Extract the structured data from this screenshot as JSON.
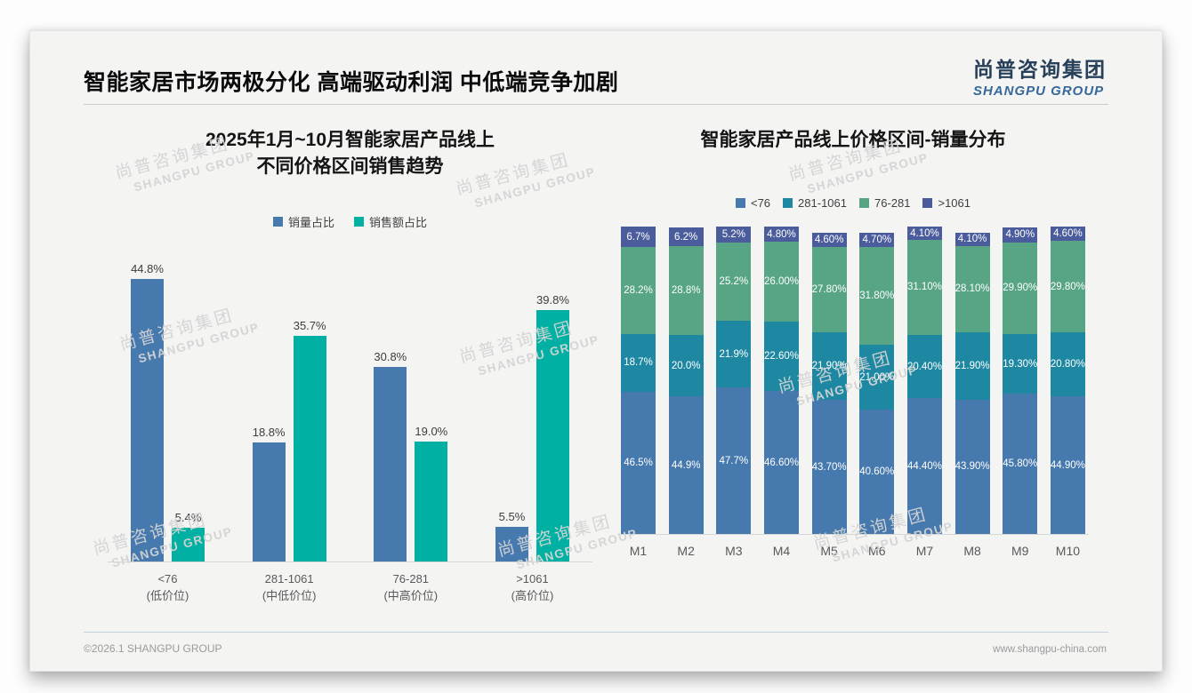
{
  "header": {
    "title": "智能家居市场两极分化 高端驱动利润 中低端竞争加剧",
    "logo_cn": "尚普咨询集团",
    "logo_en": "SHANGPU GROUP"
  },
  "footer": {
    "copyright": "©2026.1 SHANGPU GROUP",
    "website": "www.shangpu-china.com"
  },
  "watermark": {
    "line1": "尚普咨询集团",
    "line2": "SHANGPU GROUP"
  },
  "colors": {
    "steel_blue": "#4679ad",
    "teal": "#00b0a2",
    "dark_teal": "#1e88a2",
    "green": "#57a584",
    "navy": "#4a5c9c",
    "axis": "#d6d6d6"
  },
  "chart_data": [
    {
      "type": "bar",
      "title": "2025年1月~10月智能家居产品线上不同价格区间销售趋势",
      "title_lines": [
        "2025年1月~10月智能家居产品线上",
        "不同价格区间销售趋势"
      ],
      "xlabel": "",
      "ylabel": "",
      "ylim": [
        0,
        50
      ],
      "grid": false,
      "legend_position": "top",
      "value_labels": true,
      "categories": [
        {
          "range": "<76",
          "tier": "(低价位)"
        },
        {
          "range": "281-1061",
          "tier": "(中低价位)"
        },
        {
          "range": "76-281",
          "tier": "(中高价位)"
        },
        {
          "range": ">1061",
          "tier": "(高价位)"
        }
      ],
      "series": [
        {
          "name": "销量占比",
          "color": "#4679ad",
          "values": [
            44.8,
            18.8,
            30.8,
            5.5
          ],
          "labels": [
            "44.8%",
            "18.8%",
            "30.8%",
            "5.5%"
          ]
        },
        {
          "name": "销售额占比",
          "color": "#00b0a2",
          "values": [
            5.4,
            35.7,
            19.0,
            39.8
          ],
          "labels": [
            "5.4%",
            "35.7%",
            "19.0%",
            "39.8%"
          ]
        }
      ]
    },
    {
      "type": "bar",
      "stacked": true,
      "title": "智能家居产品线上价格区间-销量分布",
      "xlabel": "",
      "ylabel": "",
      "ylim": [
        0,
        100
      ],
      "grid": false,
      "legend_position": "top",
      "value_labels": true,
      "categories": [
        "M1",
        "M2",
        "M3",
        "M4",
        "M5",
        "M6",
        "M7",
        "M8",
        "M9",
        "M10"
      ],
      "series": [
        {
          "name": "<76",
          "color": "#4679ad",
          "values": [
            46.5,
            44.9,
            47.7,
            46.6,
            43.7,
            40.6,
            44.4,
            43.9,
            45.8,
            44.9
          ],
          "labels": [
            "46.5%",
            "44.9%",
            "47.7%",
            "46.60%",
            "43.70%",
            "40.60%",
            "44.40%",
            "43.90%",
            "45.80%",
            "44.90%"
          ]
        },
        {
          "name": "281-1061",
          "color": "#1e88a2",
          "values": [
            18.7,
            20.0,
            21.9,
            22.6,
            21.9,
            21.0,
            20.4,
            21.9,
            19.3,
            20.8
          ],
          "labels": [
            "18.7%",
            "20.0%",
            "21.9%",
            "22.60%",
            "21.90%",
            "21.00%",
            "20.40%",
            "21.90%",
            "19.30%",
            "20.80%"
          ]
        },
        {
          "name": "76-281",
          "color": "#57a584",
          "values": [
            28.2,
            28.8,
            25.2,
            26.0,
            27.8,
            31.8,
            31.1,
            28.1,
            29.9,
            29.8
          ],
          "labels": [
            "28.2%",
            "28.8%",
            "25.2%",
            "26.00%",
            "27.80%",
            "31.80%",
            "31.10%",
            "28.10%",
            "29.90%",
            "29.80%"
          ]
        },
        {
          "name": ">1061",
          "color": "#4a5c9c",
          "values": [
            6.7,
            6.2,
            5.2,
            4.8,
            4.6,
            4.7,
            4.1,
            4.1,
            4.9,
            4.6
          ],
          "labels": [
            "6.7%",
            "6.2%",
            "5.2%",
            "4.80%",
            "4.60%",
            "4.70%",
            "4.10%",
            "4.10%",
            "4.90%",
            "4.60%"
          ]
        }
      ]
    }
  ]
}
